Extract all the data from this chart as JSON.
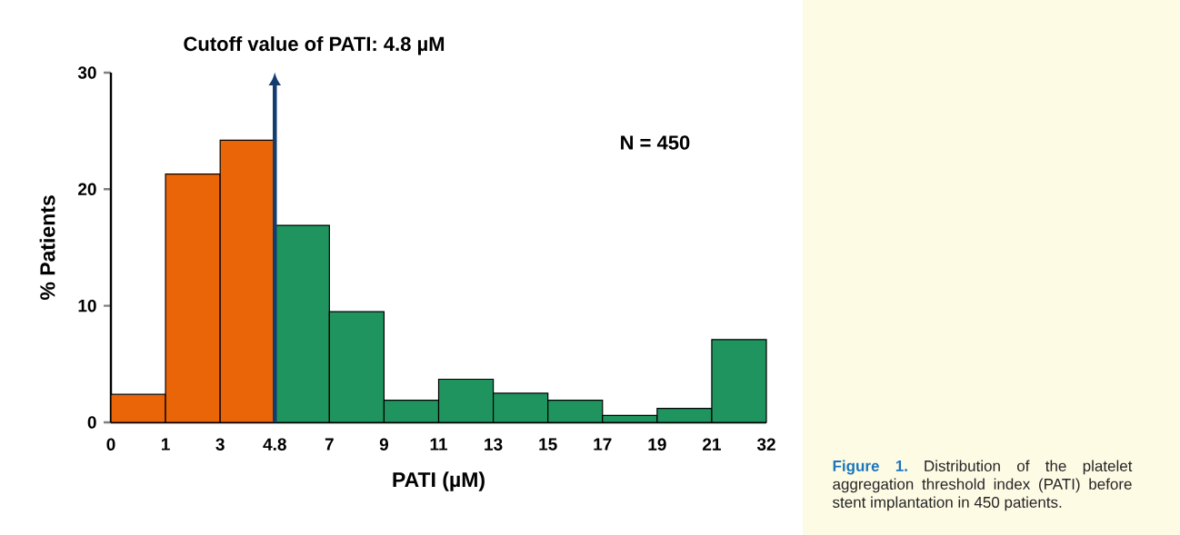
{
  "chart_data": {
    "type": "bar",
    "title": "Cutoff value of PATI: 4.8 µM",
    "xlabel": "PATI (µM)",
    "ylabel": "% Patients",
    "categories": [
      null,
      null,
      null,
      null,
      null,
      null,
      null,
      null,
      null,
      null,
      null,
      null
    ],
    "values": [
      2.4,
      21.3,
      24.2,
      16.9,
      9.5,
      1.9,
      3.7,
      2.5,
      1.9,
      0.6,
      1.2,
      7.1
    ],
    "colors": [
      "#ea6508",
      "#ea6508",
      "#ea6508",
      "#20945f",
      "#20945f",
      "#20945f",
      "#20945f",
      "#20945f",
      "#20945f",
      "#20945f",
      "#20945f",
      "#20945f"
    ],
    "ylim": [
      0,
      30
    ],
    "yticks": [
      0,
      10,
      20,
      30
    ],
    "annotations": [
      "N = 450",
      "Figure 1.",
      "Distribution of the platelet aggregation threshold index (PATI) before stent implantation in 450 patients.",
      "0",
      "1",
      "3",
      "4.8",
      "7",
      "9",
      "11",
      "13",
      "15",
      "17",
      "19",
      "21",
      "32"
    ]
  }
}
